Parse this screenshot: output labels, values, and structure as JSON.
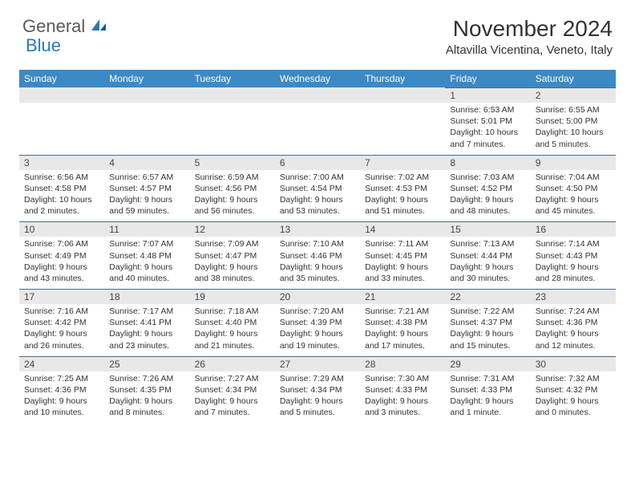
{
  "logo": {
    "text1": "General",
    "text2": "Blue"
  },
  "title": "November 2024",
  "location": "Altavilla Vicentina, Veneto, Italy",
  "colors": {
    "header_bg": "#3b89c5",
    "header_text": "#ffffff",
    "daynum_bg": "#e8e8e8",
    "row_divider": "#4a6a8a",
    "body_text": "#333333",
    "logo_gray": "#5a5a5a",
    "logo_blue": "#2a7ab8"
  },
  "day_headers": [
    "Sunday",
    "Monday",
    "Tuesday",
    "Wednesday",
    "Thursday",
    "Friday",
    "Saturday"
  ],
  "weeks": [
    [
      null,
      null,
      null,
      null,
      null,
      {
        "n": "1",
        "sr": "Sunrise: 6:53 AM",
        "ss": "Sunset: 5:01 PM",
        "dl": "Daylight: 10 hours and 7 minutes."
      },
      {
        "n": "2",
        "sr": "Sunrise: 6:55 AM",
        "ss": "Sunset: 5:00 PM",
        "dl": "Daylight: 10 hours and 5 minutes."
      }
    ],
    [
      {
        "n": "3",
        "sr": "Sunrise: 6:56 AM",
        "ss": "Sunset: 4:58 PM",
        "dl": "Daylight: 10 hours and 2 minutes."
      },
      {
        "n": "4",
        "sr": "Sunrise: 6:57 AM",
        "ss": "Sunset: 4:57 PM",
        "dl": "Daylight: 9 hours and 59 minutes."
      },
      {
        "n": "5",
        "sr": "Sunrise: 6:59 AM",
        "ss": "Sunset: 4:56 PM",
        "dl": "Daylight: 9 hours and 56 minutes."
      },
      {
        "n": "6",
        "sr": "Sunrise: 7:00 AM",
        "ss": "Sunset: 4:54 PM",
        "dl": "Daylight: 9 hours and 53 minutes."
      },
      {
        "n": "7",
        "sr": "Sunrise: 7:02 AM",
        "ss": "Sunset: 4:53 PM",
        "dl": "Daylight: 9 hours and 51 minutes."
      },
      {
        "n": "8",
        "sr": "Sunrise: 7:03 AM",
        "ss": "Sunset: 4:52 PM",
        "dl": "Daylight: 9 hours and 48 minutes."
      },
      {
        "n": "9",
        "sr": "Sunrise: 7:04 AM",
        "ss": "Sunset: 4:50 PM",
        "dl": "Daylight: 9 hours and 45 minutes."
      }
    ],
    [
      {
        "n": "10",
        "sr": "Sunrise: 7:06 AM",
        "ss": "Sunset: 4:49 PM",
        "dl": "Daylight: 9 hours and 43 minutes."
      },
      {
        "n": "11",
        "sr": "Sunrise: 7:07 AM",
        "ss": "Sunset: 4:48 PM",
        "dl": "Daylight: 9 hours and 40 minutes."
      },
      {
        "n": "12",
        "sr": "Sunrise: 7:09 AM",
        "ss": "Sunset: 4:47 PM",
        "dl": "Daylight: 9 hours and 38 minutes."
      },
      {
        "n": "13",
        "sr": "Sunrise: 7:10 AM",
        "ss": "Sunset: 4:46 PM",
        "dl": "Daylight: 9 hours and 35 minutes."
      },
      {
        "n": "14",
        "sr": "Sunrise: 7:11 AM",
        "ss": "Sunset: 4:45 PM",
        "dl": "Daylight: 9 hours and 33 minutes."
      },
      {
        "n": "15",
        "sr": "Sunrise: 7:13 AM",
        "ss": "Sunset: 4:44 PM",
        "dl": "Daylight: 9 hours and 30 minutes."
      },
      {
        "n": "16",
        "sr": "Sunrise: 7:14 AM",
        "ss": "Sunset: 4:43 PM",
        "dl": "Daylight: 9 hours and 28 minutes."
      }
    ],
    [
      {
        "n": "17",
        "sr": "Sunrise: 7:16 AM",
        "ss": "Sunset: 4:42 PM",
        "dl": "Daylight: 9 hours and 26 minutes."
      },
      {
        "n": "18",
        "sr": "Sunrise: 7:17 AM",
        "ss": "Sunset: 4:41 PM",
        "dl": "Daylight: 9 hours and 23 minutes."
      },
      {
        "n": "19",
        "sr": "Sunrise: 7:18 AM",
        "ss": "Sunset: 4:40 PM",
        "dl": "Daylight: 9 hours and 21 minutes."
      },
      {
        "n": "20",
        "sr": "Sunrise: 7:20 AM",
        "ss": "Sunset: 4:39 PM",
        "dl": "Daylight: 9 hours and 19 minutes."
      },
      {
        "n": "21",
        "sr": "Sunrise: 7:21 AM",
        "ss": "Sunset: 4:38 PM",
        "dl": "Daylight: 9 hours and 17 minutes."
      },
      {
        "n": "22",
        "sr": "Sunrise: 7:22 AM",
        "ss": "Sunset: 4:37 PM",
        "dl": "Daylight: 9 hours and 15 minutes."
      },
      {
        "n": "23",
        "sr": "Sunrise: 7:24 AM",
        "ss": "Sunset: 4:36 PM",
        "dl": "Daylight: 9 hours and 12 minutes."
      }
    ],
    [
      {
        "n": "24",
        "sr": "Sunrise: 7:25 AM",
        "ss": "Sunset: 4:36 PM",
        "dl": "Daylight: 9 hours and 10 minutes."
      },
      {
        "n": "25",
        "sr": "Sunrise: 7:26 AM",
        "ss": "Sunset: 4:35 PM",
        "dl": "Daylight: 9 hours and 8 minutes."
      },
      {
        "n": "26",
        "sr": "Sunrise: 7:27 AM",
        "ss": "Sunset: 4:34 PM",
        "dl": "Daylight: 9 hours and 7 minutes."
      },
      {
        "n": "27",
        "sr": "Sunrise: 7:29 AM",
        "ss": "Sunset: 4:34 PM",
        "dl": "Daylight: 9 hours and 5 minutes."
      },
      {
        "n": "28",
        "sr": "Sunrise: 7:30 AM",
        "ss": "Sunset: 4:33 PM",
        "dl": "Daylight: 9 hours and 3 minutes."
      },
      {
        "n": "29",
        "sr": "Sunrise: 7:31 AM",
        "ss": "Sunset: 4:33 PM",
        "dl": "Daylight: 9 hours and 1 minute."
      },
      {
        "n": "30",
        "sr": "Sunrise: 7:32 AM",
        "ss": "Sunset: 4:32 PM",
        "dl": "Daylight: 9 hours and 0 minutes."
      }
    ]
  ]
}
